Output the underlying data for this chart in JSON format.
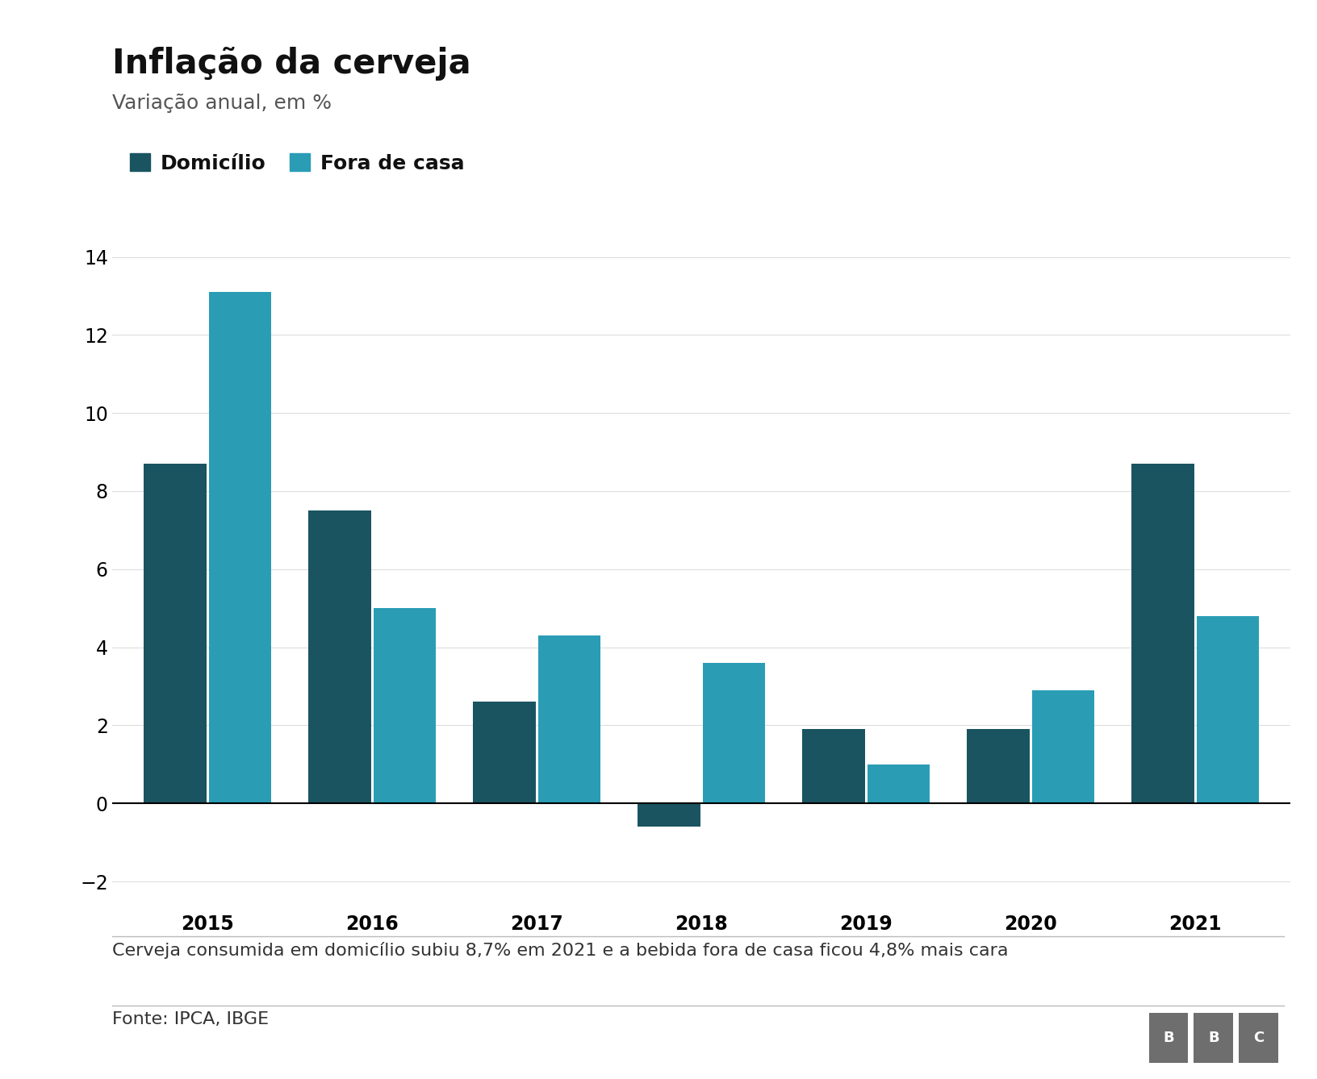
{
  "title": "Inflação da cerveja",
  "subtitle": "Variação anual, em %",
  "years": [
    2015,
    2016,
    2017,
    2018,
    2019,
    2020,
    2021
  ],
  "domicilio": [
    8.7,
    7.5,
    2.6,
    -0.6,
    1.9,
    1.9,
    8.7
  ],
  "fora_de_casa": [
    13.1,
    5.0,
    4.3,
    3.6,
    1.0,
    2.9,
    4.8
  ],
  "color_domicilio": "#1a5461",
  "color_fora": "#2a9db5",
  "ylim": [
    -2.5,
    14.5
  ],
  "yticks": [
    -2,
    0,
    2,
    4,
    6,
    8,
    10,
    12,
    14
  ],
  "legend_domicilio": "Domicílio",
  "legend_fora": "Fora de casa",
  "caption": "Cerveja consumida em domicílio subiu 8,7% em 2021 e a bebida fora de casa ficou 4,8% mais cara",
  "source": "Fonte: IPCA, IBGE",
  "background_color": "#ffffff",
  "title_fontsize": 30,
  "subtitle_fontsize": 18,
  "tick_fontsize": 17,
  "legend_fontsize": 18,
  "caption_fontsize": 16,
  "source_fontsize": 16,
  "bbc_color": "#6e6e6e"
}
